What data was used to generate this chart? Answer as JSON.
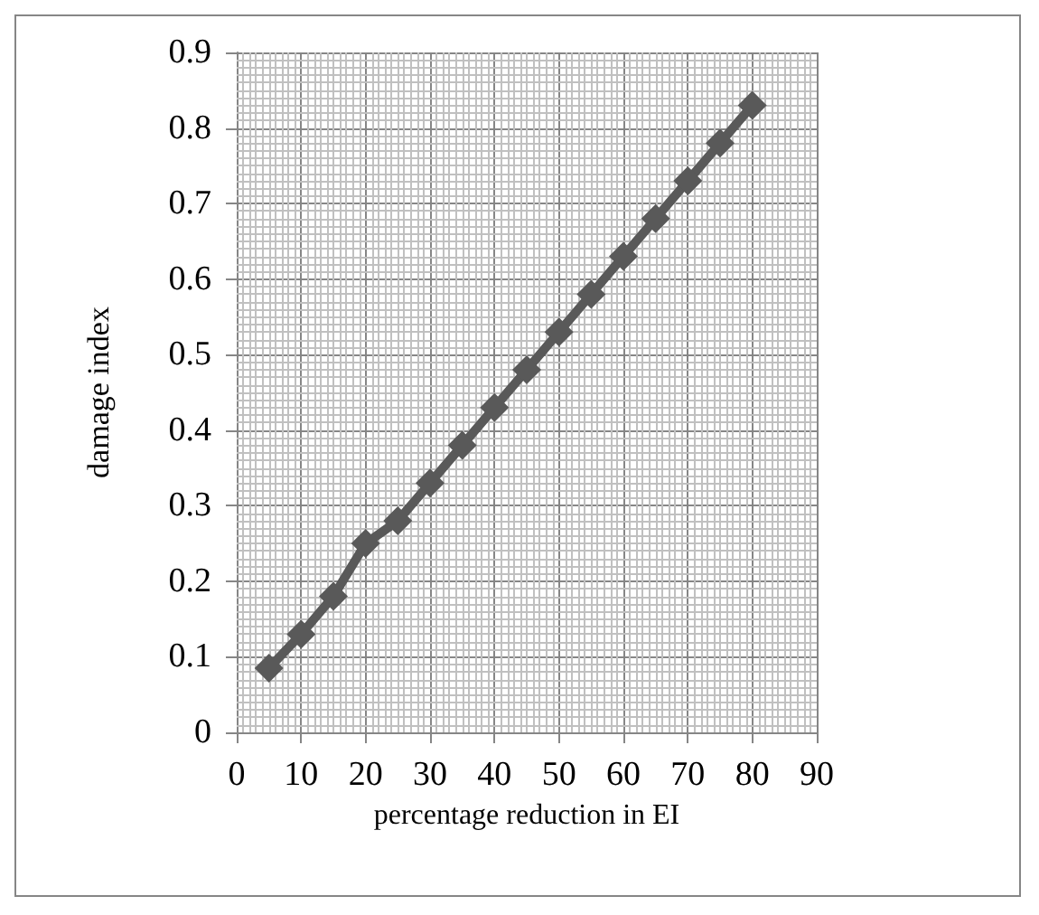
{
  "chart_data": {
    "type": "line",
    "xlabel": "percentage reduction in EI",
    "ylabel": "damage index",
    "x": [
      5,
      10,
      15,
      20,
      25,
      30,
      35,
      40,
      45,
      50,
      55,
      60,
      65,
      70,
      75,
      80
    ],
    "series": [
      {
        "color": "#595959",
        "values": [
          0.085,
          0.13,
          0.18,
          0.25,
          0.28,
          0.33,
          0.38,
          0.43,
          0.48,
          0.53,
          0.58,
          0.63,
          0.68,
          0.73,
          0.78,
          0.83
        ]
      }
    ],
    "xlim": [
      0,
      90
    ],
    "xticks": [
      0,
      10,
      20,
      30,
      40,
      50,
      60,
      70,
      80,
      90
    ],
    "ylim": [
      0,
      0.9
    ],
    "yticks": [
      0,
      0.1,
      0.2,
      0.3,
      0.4,
      0.5,
      0.6,
      0.7,
      0.8,
      0.9
    ],
    "grid": true,
    "marker": "diamond",
    "line_style": "solid"
  }
}
